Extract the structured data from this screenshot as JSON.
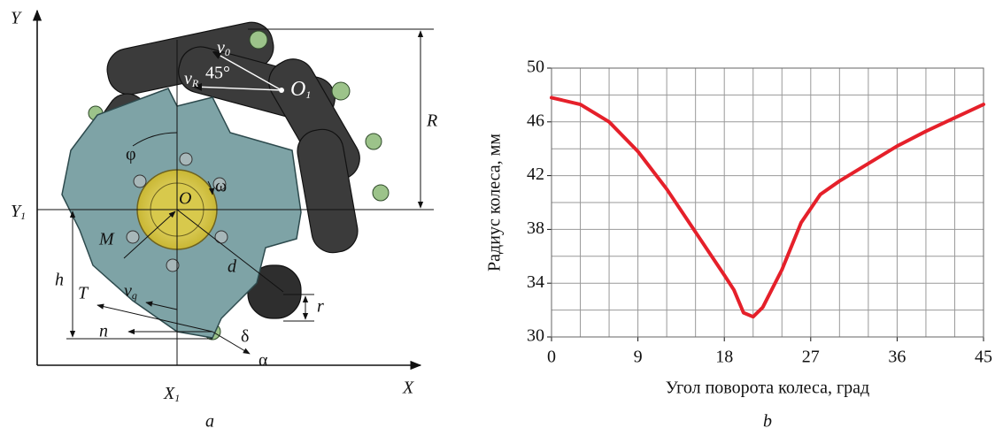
{
  "chart_data": {
    "type": "line",
    "x_label": "Угол поворота колеса, град",
    "y_label": "Радиус колеса, мм",
    "panel_label": "b",
    "x": [
      0,
      3,
      6,
      9,
      12,
      15,
      18,
      19,
      20,
      21,
      22,
      24,
      26,
      28,
      30,
      33,
      36,
      39,
      42,
      45
    ],
    "values": [
      47.8,
      47.3,
      46.0,
      43.8,
      41.0,
      37.8,
      34.6,
      33.5,
      31.8,
      31.5,
      32.2,
      35.0,
      38.5,
      40.6,
      41.6,
      42.9,
      44.2,
      45.3,
      46.3,
      47.3
    ],
    "color": "#e5202a",
    "xlim": [
      0,
      45
    ],
    "xticks": [
      0,
      9,
      18,
      27,
      36,
      45
    ],
    "ylim": [
      30,
      50
    ],
    "yticks": [
      30,
      34,
      38,
      42,
      46,
      50
    ],
    "xgrid": [
      0,
      3,
      6,
      9,
      12,
      15,
      18,
      21,
      24,
      27,
      30,
      33,
      36,
      39,
      42,
      45
    ],
    "ygrid": [
      30,
      32,
      34,
      36,
      38,
      40,
      42,
      44,
      46,
      48,
      50
    ],
    "grid": true
  },
  "diagram": {
    "panel_label": "a",
    "labels": {
      "Y": "Y",
      "X": "X",
      "Y1": {
        "main": "Y",
        "sub": "1"
      },
      "X1": {
        "main": "X",
        "sub": "1"
      },
      "R": "R",
      "h": "h",
      "r": "r",
      "d": "d",
      "O": "O",
      "O1": {
        "main": "O",
        "sub": "1"
      },
      "M": "M",
      "T": "T",
      "n": "n",
      "phi": "φ",
      "omega": "ω",
      "delta": "δ",
      "alpha": "α",
      "v0": {
        "main": "v",
        "sub": "0"
      },
      "vR": {
        "main": "v",
        "sub": "R"
      },
      "vq": {
        "main": "v",
        "sub": "q"
      },
      "angle": "45°"
    }
  }
}
